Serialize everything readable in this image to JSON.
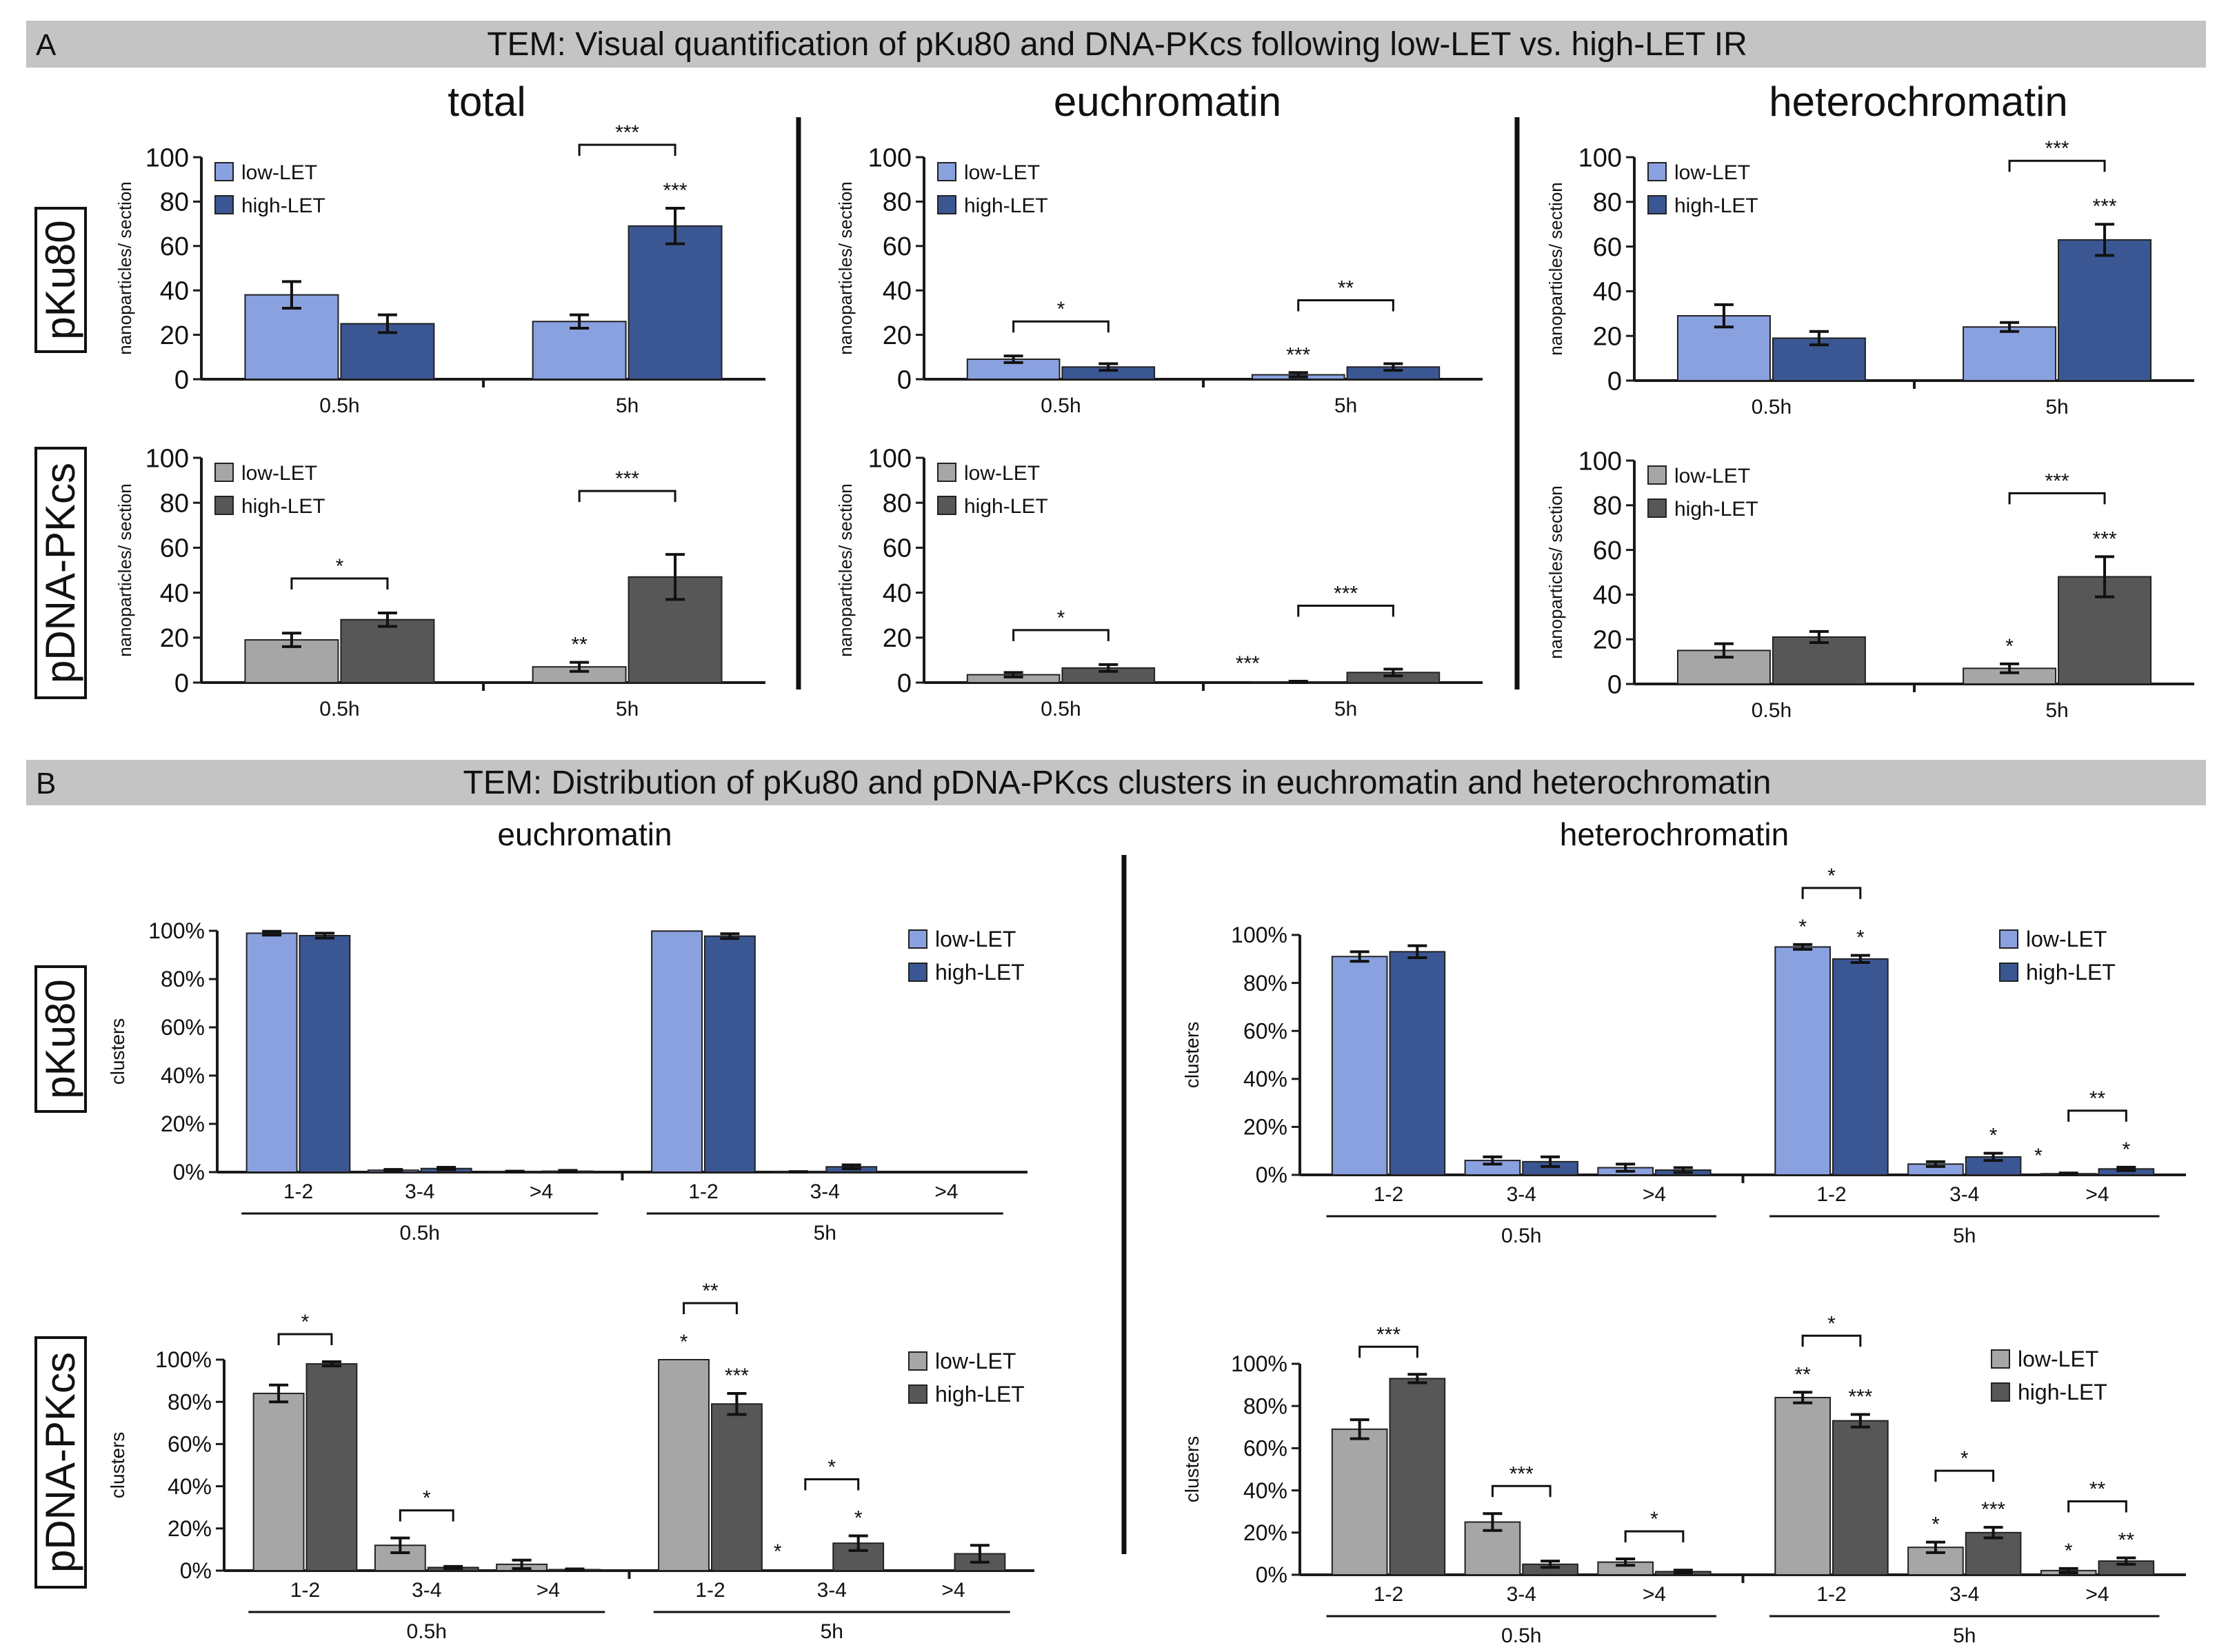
{
  "colors": {
    "header_bg": "#c4c4c4",
    "blue_low": "#8aa1e0",
    "blue_high": "#3b5793",
    "gray_low": "#a6a6a6",
    "gray_high": "#575757",
    "axis": "#1a1a1a",
    "text": "#111111"
  },
  "panel_a": {
    "letter": "A",
    "header": "TEM: Visual quantification of pKu80 and DNA-PKcs following low-LET vs. high-LET IR",
    "col_titles": [
      "total",
      "euchromatin",
      "heterochromatin"
    ],
    "row_labels": [
      "pKu80",
      "pDNA-PKcs"
    ]
  },
  "panel_b": {
    "letter": "B",
    "header": "TEM: Distribution of pKu80 and pDNA-PKcs clusters in euchromatin and heterochromatin",
    "col_titles": [
      "euchromatin",
      "heterochromatin"
    ],
    "row_labels": [
      "pKu80",
      "pDNA-PKcs"
    ]
  },
  "chart_data": [
    {
      "id": "A-pKu80-total",
      "type": "bar",
      "ylabel": "nanoparticles/ section",
      "ylim": [
        0,
        100
      ],
      "yticks": [
        0,
        20,
        40,
        60,
        80,
        100
      ],
      "categories": [
        "0.5h",
        "5h"
      ],
      "series": [
        {
          "name": "low-LET",
          "values": [
            38,
            26
          ],
          "errors": [
            6,
            3
          ]
        },
        {
          "name": "high-LET",
          "values": [
            25,
            69
          ],
          "errors": [
            4,
            8
          ]
        }
      ],
      "bar_sig": [
        {
          "cat": 1,
          "s": 1,
          "label": "***"
        }
      ],
      "brackets": [
        {
          "cat": 1,
          "label": "***"
        }
      ]
    },
    {
      "id": "A-pKu80-eu",
      "type": "bar",
      "ylabel": "nanoparticles/ section",
      "ylim": [
        0,
        100
      ],
      "yticks": [
        0,
        20,
        40,
        60,
        80,
        100
      ],
      "categories": [
        "0.5h",
        "5h"
      ],
      "series": [
        {
          "name": "low-LET",
          "values": [
            9,
            2
          ],
          "errors": [
            1.5,
            1
          ]
        },
        {
          "name": "high-LET",
          "values": [
            5.5,
            5.5
          ],
          "errors": [
            1.5,
            1.5
          ]
        }
      ],
      "bar_sig": [
        {
          "cat": 1,
          "s": 0,
          "label": "***"
        }
      ],
      "brackets": [
        {
          "cat": 0,
          "label": "*"
        },
        {
          "cat": 1,
          "label": "**"
        }
      ]
    },
    {
      "id": "A-pKu80-hetero",
      "type": "bar",
      "ylabel": "nanoparticles/ section",
      "ylim": [
        0,
        100
      ],
      "yticks": [
        0,
        20,
        40,
        60,
        80,
        100
      ],
      "categories": [
        "0.5h",
        "5h"
      ],
      "series": [
        {
          "name": "low-LET",
          "values": [
            29,
            24
          ],
          "errors": [
            5,
            2
          ]
        },
        {
          "name": "high-LET",
          "values": [
            19,
            63
          ],
          "errors": [
            3,
            7
          ]
        }
      ],
      "bar_sig": [
        {
          "cat": 1,
          "s": 1,
          "label": "***"
        }
      ],
      "brackets": [
        {
          "cat": 1,
          "label": "***"
        }
      ]
    },
    {
      "id": "A-pDNAPKcs-total",
      "type": "bar",
      "ylabel": "nanoparticles/ section",
      "ylim": [
        0,
        100
      ],
      "yticks": [
        0,
        20,
        40,
        60,
        80,
        100
      ],
      "categories": [
        "0.5h",
        "5h"
      ],
      "series": [
        {
          "name": "low-LET",
          "values": [
            19,
            7
          ],
          "errors": [
            3,
            2
          ]
        },
        {
          "name": "high-LET",
          "values": [
            28,
            47
          ],
          "errors": [
            3,
            10
          ]
        }
      ],
      "bar_sig": [
        {
          "cat": 1,
          "s": 0,
          "label": "**"
        }
      ],
      "brackets": [
        {
          "cat": 0,
          "label": "*"
        },
        {
          "cat": 1,
          "label": "***"
        }
      ]
    },
    {
      "id": "A-pDNAPKcs-eu",
      "type": "bar",
      "ylabel": "nanoparticles/ section",
      "ylim": [
        0,
        100
      ],
      "yticks": [
        0,
        20,
        40,
        60,
        80,
        100
      ],
      "categories": [
        "0.5h",
        "5h"
      ],
      "series": [
        {
          "name": "low-LET",
          "values": [
            3.5,
            0.3
          ],
          "errors": [
            1,
            0.3
          ]
        },
        {
          "name": "high-LET",
          "values": [
            6.5,
            4.5
          ],
          "errors": [
            1.5,
            1.5
          ]
        }
      ],
      "bar_sig": [
        {
          "cat": 1,
          "s": 0,
          "label": "***"
        }
      ],
      "brackets": [
        {
          "cat": 0,
          "label": "*"
        },
        {
          "cat": 1,
          "label": "***"
        }
      ]
    },
    {
      "id": "A-pDNAPKcs-hetero",
      "type": "bar",
      "ylabel": "nanoparticles/ section",
      "ylim": [
        0,
        100
      ],
      "yticks": [
        0,
        20,
        40,
        60,
        80,
        100
      ],
      "categories": [
        "0.5h",
        "5h"
      ],
      "series": [
        {
          "name": "low-LET",
          "values": [
            15,
            7
          ],
          "errors": [
            3,
            2
          ]
        },
        {
          "name": "high-LET",
          "values": [
            21,
            48
          ],
          "errors": [
            2.5,
            9
          ]
        }
      ],
      "bar_sig": [
        {
          "cat": 1,
          "s": 0,
          "label": "*"
        },
        {
          "cat": 1,
          "s": 1,
          "label": "***"
        }
      ],
      "brackets": [
        {
          "cat": 1,
          "label": "***"
        }
      ]
    },
    {
      "id": "B-pKu80-eu",
      "type": "bar",
      "ylabel": "clusters",
      "ylim": [
        0,
        100
      ],
      "yticks": [
        "0%",
        "20%",
        "40%",
        "60%",
        "80%",
        "100%"
      ],
      "groups": [
        "0.5h",
        "5h"
      ],
      "categories": [
        "1-2",
        "3-4",
        ">4",
        "1-2",
        "3-4",
        ">4"
      ],
      "series": [
        {
          "name": "low-LET",
          "values": [
            99,
            0.8,
            0.2,
            99.9,
            0.1,
            0
          ],
          "errors": [
            0.8,
            0.3,
            0.2,
            0,
            0.1,
            0
          ]
        },
        {
          "name": "high-LET",
          "values": [
            98,
            1.5,
            0.4,
            97.8,
            2.2,
            0
          ],
          "errors": [
            1,
            0.5,
            0.3,
            1,
            0.8,
            0
          ]
        }
      ],
      "bar_sig": [],
      "brackets": []
    },
    {
      "id": "B-pKu80-hetero",
      "type": "bar",
      "ylabel": "clusters",
      "ylim": [
        0,
        100
      ],
      "yticks": [
        "0%",
        "20%",
        "40%",
        "60%",
        "80%",
        "100%"
      ],
      "groups": [
        "0.5h",
        "5h"
      ],
      "categories": [
        "1-2",
        "3-4",
        ">4",
        "1-2",
        "3-4",
        ">4"
      ],
      "series": [
        {
          "name": "low-LET",
          "values": [
            91,
            6,
            3,
            95,
            4.5,
            0.5
          ],
          "errors": [
            2,
            1.5,
            1.5,
            1,
            1,
            0.3
          ]
        },
        {
          "name": "high-LET",
          "values": [
            93,
            5.5,
            2,
            90,
            7.5,
            2.5
          ],
          "errors": [
            2.5,
            2,
            1,
            1.5,
            1.5,
            0.7
          ]
        }
      ],
      "bar_sig": [
        {
          "cat": 3,
          "s": 0,
          "label": "*"
        },
        {
          "cat": 3,
          "s": 1,
          "label": "*"
        },
        {
          "cat": 4,
          "s": 1,
          "label": "*"
        },
        {
          "cat": 5,
          "s": 0,
          "label": "*"
        },
        {
          "cat": 5,
          "s": 1,
          "label": "*"
        }
      ],
      "brackets": [
        {
          "cat": 3,
          "label": "*"
        },
        {
          "cat": 5,
          "label": "**"
        }
      ]
    },
    {
      "id": "B-pDNAPKcs-eu",
      "type": "bar",
      "ylabel": "clusters",
      "ylim": [
        0,
        100
      ],
      "yticks": [
        "0%",
        "20%",
        "40%",
        "60%",
        "80%",
        "100%"
      ],
      "groups": [
        "0.5h",
        "5h"
      ],
      "categories": [
        "1-2",
        "3-4",
        ">4",
        "1-2",
        "3-4",
        ">4"
      ],
      "series": [
        {
          "name": "low-LET",
          "values": [
            84,
            12,
            3,
            100,
            0,
            0
          ],
          "errors": [
            4,
            3.5,
            2,
            0,
            0,
            0
          ]
        },
        {
          "name": "high-LET",
          "values": [
            98,
            1.5,
            0.5,
            79,
            13,
            8
          ],
          "errors": [
            1,
            0.5,
            0.3,
            5,
            3.5,
            4
          ]
        }
      ],
      "bar_sig": [
        {
          "cat": 3,
          "s": 0,
          "label": "*"
        },
        {
          "cat": 3,
          "s": 1,
          "label": "***"
        },
        {
          "cat": 4,
          "s": 0,
          "label": "*"
        },
        {
          "cat": 4,
          "s": 1,
          "label": "*"
        }
      ],
      "brackets": [
        {
          "cat": 0,
          "label": "*"
        },
        {
          "cat": 1,
          "label": "*"
        },
        {
          "cat": 3,
          "label": "**"
        },
        {
          "cat": 4,
          "label": "*"
        }
      ]
    },
    {
      "id": "B-pDNAPKcs-hetero",
      "type": "bar",
      "ylabel": "clusters",
      "ylim": [
        0,
        100
      ],
      "yticks": [
        "0%",
        "20%",
        "40%",
        "60%",
        "80%",
        "100%"
      ],
      "groups": [
        "0.5h",
        "5h"
      ],
      "categories": [
        "1-2",
        "3-4",
        ">4",
        "1-2",
        "3-4",
        ">4"
      ],
      "series": [
        {
          "name": "low-LET",
          "values": [
            69,
            25,
            6,
            84,
            13,
            2
          ],
          "errors": [
            4.5,
            4,
            1.5,
            2.5,
            2.5,
            1
          ]
        },
        {
          "name": "high-LET",
          "values": [
            93,
            5,
            1.5,
            73,
            20,
            6.5
          ],
          "errors": [
            2,
            1.5,
            0.7,
            3,
            2.5,
            1.5
          ]
        }
      ],
      "bar_sig": [
        {
          "cat": 3,
          "s": 0,
          "label": "**"
        },
        {
          "cat": 3,
          "s": 1,
          "label": "***"
        },
        {
          "cat": 4,
          "s": 0,
          "label": "*"
        },
        {
          "cat": 4,
          "s": 1,
          "label": "***"
        },
        {
          "cat": 5,
          "s": 0,
          "label": "*"
        },
        {
          "cat": 5,
          "s": 1,
          "label": "**"
        }
      ],
      "brackets": [
        {
          "cat": 0,
          "label": "***"
        },
        {
          "cat": 1,
          "label": "***"
        },
        {
          "cat": 2,
          "label": "*"
        },
        {
          "cat": 3,
          "label": "*"
        },
        {
          "cat": 4,
          "label": "*"
        },
        {
          "cat": 5,
          "label": "**"
        }
      ]
    }
  ]
}
